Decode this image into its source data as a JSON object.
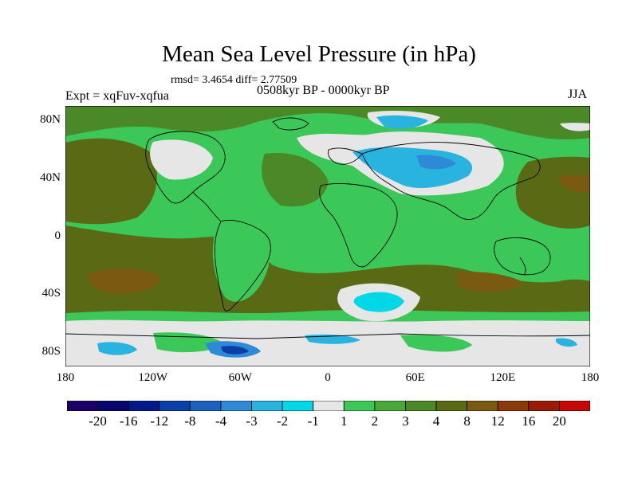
{
  "title": "Mean Sea Level Pressure (in hPa)",
  "stats": "rmsd= 3.4654 diff= 2.77509",
  "subtitle": "0508kyr BP - 0000kyr BP",
  "expt": "Expt = xqFuv-xqfua",
  "season": "JJA",
  "y_axis": [
    {
      "lat": 80,
      "label": "80N"
    },
    {
      "lat": 40,
      "label": "40N"
    },
    {
      "lat": 0,
      "label": "0"
    },
    {
      "lat": -40,
      "label": "40S"
    },
    {
      "lat": -80,
      "label": "80S"
    }
  ],
  "x_axis": [
    {
      "lon": -180,
      "label": "180"
    },
    {
      "lon": -120,
      "label": "120W"
    },
    {
      "lon": -60,
      "label": "60W"
    },
    {
      "lon": 0,
      "label": "0"
    },
    {
      "lon": 60,
      "label": "60E"
    },
    {
      "lon": 120,
      "label": "120E"
    },
    {
      "lon": 180,
      "label": "180"
    }
  ],
  "colorbar": {
    "colors": [
      "#1a0066",
      "#06066e",
      "#001a8c",
      "#0a3fa8",
      "#1d60c0",
      "#2e8ad6",
      "#29b4e0",
      "#00d8e8",
      "#e6e6e6",
      "#3cc858",
      "#4aa838",
      "#4a8828",
      "#5a6a14",
      "#7a5a10",
      "#8a3a0a",
      "#9a1a08",
      "#c80808"
    ],
    "labels": [
      "-20",
      "-16",
      "-12",
      "-8",
      "-4",
      "-3",
      "-2",
      "-1",
      "1",
      "2",
      "3",
      "4",
      "8",
      "12",
      "16",
      "20"
    ]
  }
}
